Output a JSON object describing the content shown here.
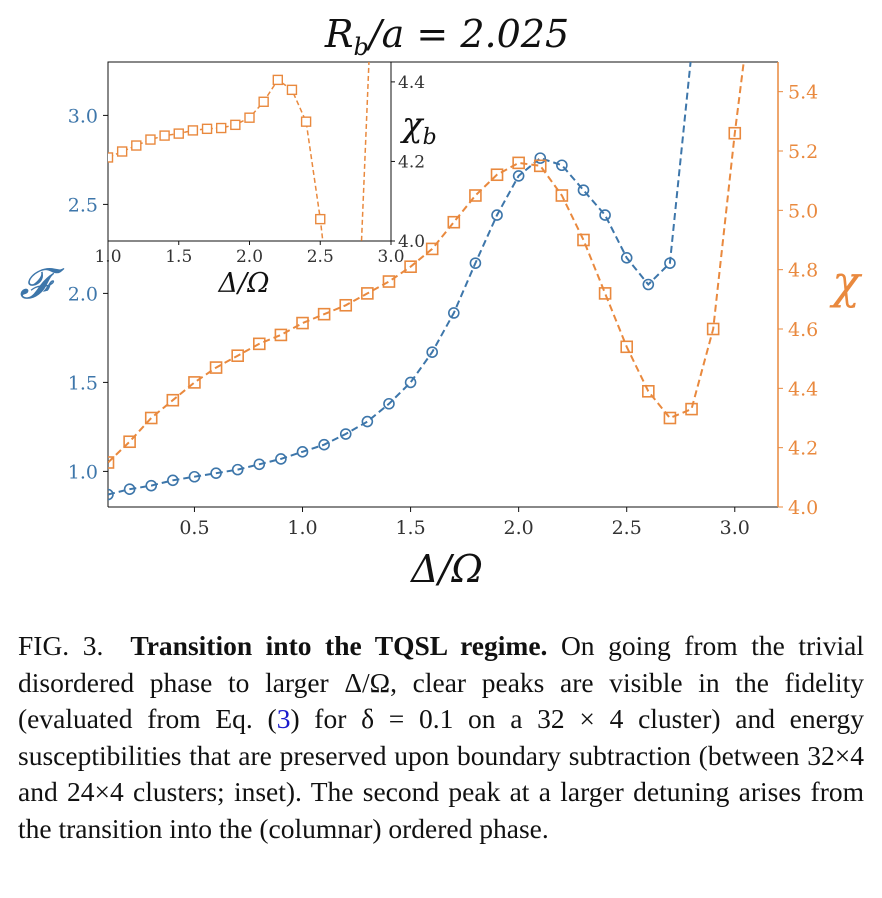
{
  "chart_data": [
    {
      "type": "line",
      "title": "R_b/a = 2.025",
      "xlabel": "Δ/Ω",
      "ylabel_left": "𝓕",
      "ylabel_right": "χ",
      "xlim": [
        0.1,
        3.2
      ],
      "ylim_left": [
        0.8,
        3.3
      ],
      "ylim_right": [
        4.0,
        5.5
      ],
      "xticks": [
        "0.5",
        "1.0",
        "1.5",
        "2.0",
        "2.5",
        "3.0"
      ],
      "yticks_left": [
        "1.0",
        "1.5",
        "2.0",
        "2.5",
        "3.0"
      ],
      "yticks_right": [
        "4.0",
        "4.2",
        "4.4",
        "4.6",
        "4.8",
        "5.0",
        "5.2",
        "5.4"
      ],
      "grid": false,
      "series": [
        {
          "axis": "left",
          "marker": "circle",
          "color": "#3d76aa",
          "x": [
            0.1,
            0.2,
            0.3,
            0.4,
            0.5,
            0.6,
            0.7,
            0.8,
            0.9,
            1.0,
            1.1,
            1.2,
            1.3,
            1.4,
            1.5,
            1.6,
            1.7,
            1.8,
            1.9,
            2.0,
            2.1,
            2.2,
            2.3,
            2.4,
            2.5,
            2.6,
            2.7,
            2.8
          ],
          "y": [
            0.87,
            0.9,
            0.92,
            0.95,
            0.97,
            0.99,
            1.01,
            1.04,
            1.07,
            1.11,
            1.15,
            1.21,
            1.28,
            1.38,
            1.5,
            1.67,
            1.89,
            2.17,
            2.44,
            2.66,
            2.76,
            2.72,
            2.58,
            2.44,
            2.2,
            2.05,
            2.17,
            3.35
          ]
        },
        {
          "axis": "right",
          "marker": "square",
          "color": "#e9893e",
          "x": [
            0.1,
            0.2,
            0.3,
            0.4,
            0.5,
            0.6,
            0.7,
            0.8,
            0.9,
            1.0,
            1.1,
            1.2,
            1.3,
            1.4,
            1.5,
            1.6,
            1.7,
            1.8,
            1.9,
            2.0,
            2.1,
            2.2,
            2.3,
            2.4,
            2.5,
            2.6,
            2.7,
            2.8,
            2.9,
            3.0,
            3.05
          ],
          "y": [
            4.15,
            4.22,
            4.3,
            4.36,
            4.42,
            4.47,
            4.51,
            4.55,
            4.58,
            4.62,
            4.65,
            4.68,
            4.72,
            4.76,
            4.81,
            4.87,
            4.96,
            5.05,
            5.12,
            5.16,
            5.15,
            5.05,
            4.9,
            4.72,
            4.54,
            4.39,
            4.3,
            4.33,
            4.6,
            5.26,
            5.55
          ]
        }
      ]
    },
    {
      "type": "line",
      "inset": true,
      "xlabel": "Δ/Ω",
      "ylabel": "χ_b",
      "xlim": [
        1.0,
        3.0
      ],
      "ylim": [
        4.0,
        4.45
      ],
      "xticks": [
        "1.0",
        "1.5",
        "2.0",
        "2.5",
        "3.0"
      ],
      "yticks": [
        "4.0",
        "4.2",
        "4.4"
      ],
      "series": [
        {
          "marker": "square",
          "color": "#e9893e",
          "x": [
            0.95,
            1.0,
            1.1,
            1.2,
            1.3,
            1.4,
            1.5,
            1.6,
            1.7,
            1.8,
            1.9,
            2.0,
            2.1,
            2.2,
            2.3,
            2.4,
            2.5,
            2.55
          ],
          "y": [
            4.205,
            4.21,
            4.225,
            4.24,
            4.255,
            4.265,
            4.27,
            4.278,
            4.282,
            4.284,
            4.292,
            4.31,
            4.35,
            4.405,
            4.38,
            4.3,
            4.055,
            3.9
          ],
          "x2": [
            2.78,
            2.85
          ],
          "y2": [
            3.9,
            4.5
          ]
        }
      ]
    }
  ],
  "caption": {
    "label": "FIG. 3.",
    "title": "Transition into the TQSL regime.",
    "text1": "On going from the trivial disordered phase to larger Δ/Ω, clear peaks are visible in the fidelity (evaluated from Eq. (",
    "ref": "3",
    "text2": ") for δ = 0.1 on a 32 × 4 cluster) and energy susceptibilities that are preserved upon boundary subtraction (between 32×4 and 24×4 clusters; inset). The second peak at a larger detuning arises from the transition into the (columnar) ordered phase."
  }
}
